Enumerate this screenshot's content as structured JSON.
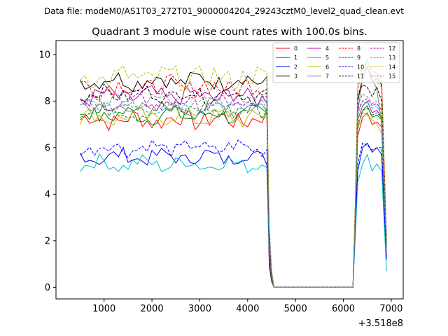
{
  "chart_data": {
    "type": "line",
    "suptitle": "Data file: modeM0/AS1T03_272T01_9000004204_29243cztM0_level2_quad_clean.evt",
    "title": "Quadrant 3 module wise count rates with 100.0s bins.",
    "xlabel": "",
    "ylabel": "",
    "x_offset_label": "+3.518e8",
    "xlim": [
      -5,
      7250
    ],
    "ylim": [
      -0.5,
      10.6
    ],
    "xticks": [
      1000,
      2000,
      3000,
      4000,
      5000,
      6000,
      7000
    ],
    "xtick_labels": [
      "1000",
      "2000",
      "3000",
      "4000",
      "5000",
      "6000",
      "7000"
    ],
    "yticks": [
      0,
      2,
      4,
      6,
      8,
      10
    ],
    "ytick_labels": [
      "0",
      "2",
      "4",
      "6",
      "8",
      "10"
    ],
    "grid": false,
    "legend_position": "top-right",
    "segment1": {
      "start": 500,
      "step": 100,
      "count": 40
    },
    "dip": [
      {
        "x": 4450,
        "y": 1.5
      },
      {
        "x": 4500,
        "y": 0.4
      },
      {
        "x": 4550,
        "y": 0.0
      }
    ],
    "flat": {
      "x_start": 4550,
      "x_end": 6200,
      "y": 0.0
    },
    "segment2": {
      "x": [
        6200,
        6250,
        6300,
        6400,
        6500,
        6600,
        6700,
        6800,
        6900
      ]
    },
    "series": [
      {
        "name": "0",
        "color": "#ff0000",
        "dash": false,
        "seg1_mean": 7.2,
        "seg1_amp": 0.4,
        "seg2_y": [
          0.0,
          3.0,
          6.5,
          7.3,
          7.5,
          7.0,
          7.1,
          6.9,
          1.8
        ]
      },
      {
        "name": "1",
        "color": "#008000",
        "dash": false,
        "seg1_mean": 7.4,
        "seg1_amp": 0.35,
        "seg2_y": [
          0.0,
          3.2,
          6.8,
          7.6,
          7.8,
          7.3,
          7.4,
          7.2,
          1.9
        ]
      },
      {
        "name": "2",
        "color": "#0000ff",
        "dash": false,
        "seg1_mean": 5.6,
        "seg1_amp": 0.3,
        "seg2_y": [
          0.0,
          2.5,
          5.0,
          6.0,
          6.2,
          5.8,
          6.0,
          5.7,
          1.2
        ]
      },
      {
        "name": "3",
        "color": "#000000",
        "dash": false,
        "seg1_mean": 8.9,
        "seg1_amp": 0.35,
        "seg2_y": [
          0.0,
          3.5,
          8.0,
          9.0,
          9.5,
          8.8,
          9.0,
          8.7,
          2.0
        ]
      },
      {
        "name": "4",
        "color": "#bf00bf",
        "dash": false,
        "seg1_mean": 8.2,
        "seg1_amp": 0.4,
        "seg2_y": [
          0.0,
          3.3,
          7.2,
          7.8,
          8.0,
          7.5,
          7.6,
          7.3,
          1.8
        ]
      },
      {
        "name": "5",
        "color": "#00bfbf",
        "dash": false,
        "seg1_mean": 5.3,
        "seg1_amp": 0.3,
        "seg2_y": [
          0.0,
          2.2,
          4.5,
          5.3,
          5.7,
          5.0,
          5.3,
          5.0,
          0.7
        ]
      },
      {
        "name": "6",
        "color": "#bfbf00",
        "dash": false,
        "seg1_mean": 7.3,
        "seg1_amp": 0.35,
        "seg2_y": [
          0.0,
          3.0,
          6.9,
          7.5,
          7.4,
          7.2,
          7.0,
          6.6,
          1.6
        ]
      },
      {
        "name": "7",
        "color": "#808080",
        "dash": false,
        "seg1_mean": 7.7,
        "seg1_amp": 0.35,
        "seg2_y": [
          0.0,
          3.4,
          7.5,
          9.0,
          9.8,
          9.0,
          8.5,
          7.0,
          1.9
        ]
      },
      {
        "name": "8",
        "color": "#ff0000",
        "dash": true,
        "seg1_mean": 8.6,
        "seg1_amp": 0.45,
        "seg2_y": [
          0.0,
          3.6,
          8.5,
          9.5,
          9.6,
          9.3,
          9.2,
          9.0,
          2.0
        ]
      },
      {
        "name": "9",
        "color": "#008000",
        "dash": true,
        "seg1_mean": 7.6,
        "seg1_amp": 0.4,
        "seg2_y": [
          0.0,
          3.1,
          7.0,
          7.6,
          7.7,
          7.4,
          7.5,
          7.3,
          1.8
        ]
      },
      {
        "name": "10",
        "color": "#0000ff",
        "dash": true,
        "seg1_mean": 6.0,
        "seg1_amp": 0.3,
        "seg2_y": [
          0.0,
          2.6,
          5.3,
          6.2,
          6.1,
          5.9,
          6.0,
          6.0,
          1.3
        ]
      },
      {
        "name": "11",
        "color": "#000000",
        "dash": true,
        "seg1_mean": 8.3,
        "seg1_amp": 0.3,
        "seg2_y": [
          0.0,
          3.4,
          8.3,
          8.7,
          8.6,
          8.2,
          8.6,
          8.0,
          1.9
        ]
      },
      {
        "name": "12",
        "color": "#bf00bf",
        "dash": true,
        "seg1_mean": 7.9,
        "seg1_amp": 0.3,
        "seg2_y": [
          0.0,
          3.3,
          7.6,
          8.0,
          8.1,
          7.8,
          7.9,
          7.6,
          1.8
        ]
      },
      {
        "name": "13",
        "color": "#00bfbf",
        "dash": true,
        "seg1_mean": 7.8,
        "seg1_amp": 0.3,
        "seg2_y": [
          0.0,
          3.2,
          7.4,
          8.0,
          7.9,
          7.7,
          7.8,
          7.4,
          1.7
        ]
      },
      {
        "name": "14",
        "color": "#bfbf00",
        "dash": true,
        "seg1_mean": 9.0,
        "seg1_amp": 0.5,
        "seg2_y": [
          0.0,
          3.7,
          8.8,
          9.6,
          9.4,
          9.0,
          8.8,
          8.6,
          2.0
        ]
      },
      {
        "name": "15",
        "color": "#808080",
        "dash": true,
        "seg1_mean": 8.0,
        "seg1_amp": 0.3,
        "seg2_y": [
          0.0,
          3.3,
          7.8,
          8.3,
          8.2,
          7.9,
          8.0,
          7.8,
          1.8
        ]
      }
    ]
  }
}
